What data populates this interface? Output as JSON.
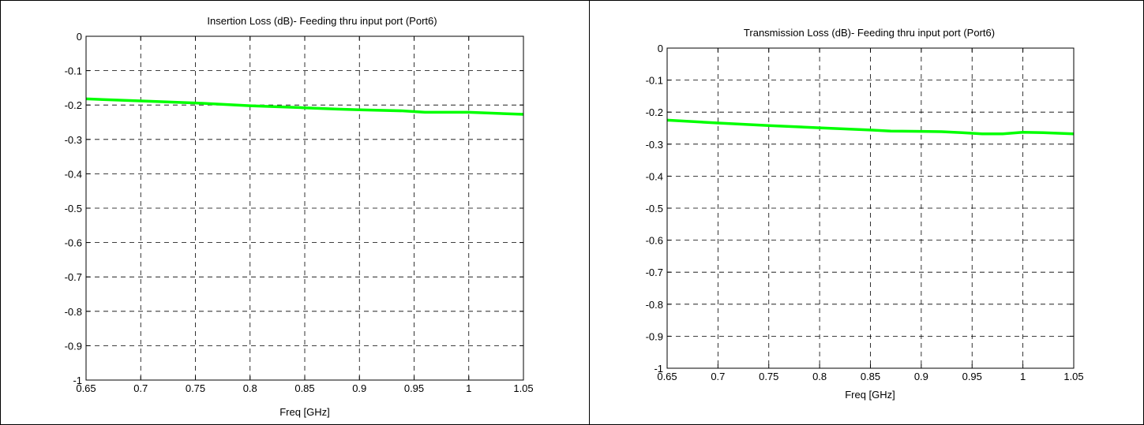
{
  "line_color": "#00ff00",
  "chart_data": [
    {
      "type": "line",
      "title": "Insertion Loss (dB)- Feeding thru input port (Port6)",
      "xlabel": "Freq [GHz]",
      "ylabel": "",
      "xlim": [
        0.65,
        1.05
      ],
      "ylim": [
        -1,
        0
      ],
      "grid": true,
      "xticks": [
        0.65,
        0.7,
        0.75,
        0.8,
        0.85,
        0.9,
        0.95,
        1,
        1.05
      ],
      "xtick_labels": [
        "0.65",
        "0.7",
        "0.75",
        "0.8",
        "0.85",
        "0.9",
        "0.95",
        "1",
        "1.05"
      ],
      "yticks": [
        0,
        -0.1,
        -0.2,
        -0.3,
        -0.4,
        -0.5,
        -0.6,
        -0.7,
        -0.8,
        -0.9,
        -1
      ],
      "ytick_labels": [
        "0",
        "-0.1",
        "-0.2",
        "-0.3",
        "-0.4",
        "-0.5",
        "-0.6",
        "-0.7",
        "-0.8",
        "-0.9",
        "-1"
      ],
      "series": [
        {
          "color": "#00ff00",
          "x": [
            0.65,
            0.7,
            0.75,
            0.8,
            0.85,
            0.88,
            0.9,
            0.94,
            0.96,
            1.0,
            1.05
          ],
          "y": [
            -0.182,
            -0.188,
            -0.194,
            -0.202,
            -0.208,
            -0.212,
            -0.214,
            -0.217,
            -0.221,
            -0.221,
            -0.227
          ]
        }
      ]
    },
    {
      "type": "line",
      "title": "Transmission Loss (dB)- Feeding thru input port (Port6)",
      "xlabel": "Freq [GHz]",
      "ylabel": "",
      "xlim": [
        0.65,
        1.05
      ],
      "ylim": [
        -1,
        0
      ],
      "grid": true,
      "xticks": [
        0.65,
        0.7,
        0.75,
        0.8,
        0.85,
        0.9,
        0.95,
        1,
        1.05
      ],
      "xtick_labels": [
        "0.65",
        "0.7",
        "0.75",
        "0.8",
        "0.85",
        "0.9",
        "0.95",
        "1",
        "1.05"
      ],
      "yticks": [
        0,
        -0.1,
        -0.2,
        -0.3,
        -0.4,
        -0.5,
        -0.6,
        -0.7,
        -0.8,
        -0.9,
        -1
      ],
      "ytick_labels": [
        "0",
        "-0.1",
        "-0.2",
        "-0.3",
        "-0.4",
        "-0.5",
        "-0.6",
        "-0.7",
        "-0.8",
        "-0.9",
        "-1"
      ],
      "series": [
        {
          "color": "#00ff00",
          "x": [
            0.65,
            0.7,
            0.75,
            0.8,
            0.85,
            0.87,
            0.9,
            0.92,
            0.94,
            0.96,
            0.98,
            1.0,
            1.02,
            1.05
          ],
          "y": [
            -0.225,
            -0.234,
            -0.242,
            -0.249,
            -0.256,
            -0.259,
            -0.26,
            -0.261,
            -0.264,
            -0.268,
            -0.268,
            -0.263,
            -0.264,
            -0.268
          ]
        }
      ]
    }
  ]
}
